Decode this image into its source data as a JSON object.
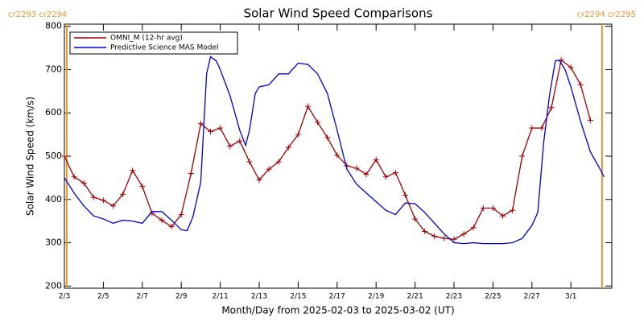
{
  "chart_data": {
    "type": "line",
    "title": "Solar Wind Speed Comparisons",
    "xlabel": "Month/Day from 2025-02-03 to 2025-03-02 (UT)",
    "ylabel": "Solar Wind Speed (km/s)",
    "xlim": [
      0,
      28.1
    ],
    "ylim": [
      195,
      805
    ],
    "xticks": [
      {
        "value": 0,
        "label": "2/3"
      },
      {
        "value": 2,
        "label": "2/5"
      },
      {
        "value": 4,
        "label": "2/7"
      },
      {
        "value": 6,
        "label": "2/9"
      },
      {
        "value": 8,
        "label": "2/11"
      },
      {
        "value": 10,
        "label": "2/13"
      },
      {
        "value": 12,
        "label": "2/15"
      },
      {
        "value": 14,
        "label": "2/17"
      },
      {
        "value": 16,
        "label": "2/19"
      },
      {
        "value": 18,
        "label": "2/21"
      },
      {
        "value": 20,
        "label": "2/23"
      },
      {
        "value": 22,
        "label": "2/25"
      },
      {
        "value": 24,
        "label": "2/27"
      },
      {
        "value": 26,
        "label": "3/1"
      }
    ],
    "yticks": [
      200,
      300,
      400,
      500,
      600,
      700,
      800
    ],
    "legend": "upper left",
    "carrington": [
      {
        "x": 0.12,
        "label": "cr2293 cr2294",
        "color": "#e8952a"
      },
      {
        "x": 27.6,
        "label": "cr2294 cr2295",
        "color": "#e8952a"
      }
    ],
    "series": [
      {
        "name": "OMNI_M (12-hr avg)",
        "color": "#a00000",
        "markers": true,
        "x": [
          0,
          0.5,
          1,
          1.5,
          2,
          2.5,
          3,
          3.5,
          4,
          4.5,
          5,
          5.5,
          6,
          6.5,
          7,
          7.5,
          8,
          8.5,
          9,
          9.5,
          10,
          10.5,
          11,
          11.5,
          12,
          12.5,
          13,
          13.5,
          14,
          14.5,
          15,
          15.5,
          16,
          16.5,
          17,
          17.5,
          18,
          18.5,
          19,
          19.5,
          20,
          20.5,
          21,
          21.5,
          22,
          22.5,
          23,
          23.5,
          24,
          24.5,
          25,
          25.5,
          26,
          26.5,
          27
        ],
        "values": [
          500,
          452,
          438,
          405,
          398,
          385,
          412,
          467,
          430,
          368,
          352,
          337,
          365,
          460,
          575,
          557,
          565,
          523,
          535,
          487,
          445,
          470,
          487,
          520,
          550,
          615,
          578,
          543,
          502,
          478,
          472,
          458,
          492,
          452,
          462,
          410,
          355,
          326,
          315,
          310,
          308,
          320,
          335,
          380,
          380,
          362,
          375,
          500,
          565,
          565,
          612,
          722,
          705,
          665,
          583
        ]
      },
      {
        "name": "Predictive Science MAS Model",
        "color": "#0000d0",
        "markers": false,
        "x": [
          0,
          0.5,
          1,
          1.5,
          2,
          2.5,
          3,
          3.5,
          4,
          4.5,
          5,
          5.5,
          6,
          6.3,
          6.6,
          7,
          7.3,
          7.5,
          7.8,
          8,
          8.5,
          9,
          9.3,
          9.5,
          9.8,
          10,
          10.5,
          11,
          11.5,
          12,
          12.5,
          13,
          13.5,
          14,
          14.5,
          15,
          15.5,
          16,
          16.5,
          17,
          17.5,
          18,
          18.5,
          19,
          19.5,
          20,
          20.5,
          21,
          21.5,
          22,
          22.5,
          23,
          23.5,
          24,
          24.3,
          24.6,
          24.9,
          25.2,
          25.4,
          25.7,
          26,
          26.5,
          27,
          27.5,
          27.7
        ],
        "values": [
          450,
          415,
          385,
          362,
          355,
          345,
          352,
          350,
          345,
          372,
          372,
          352,
          330,
          328,
          360,
          440,
          690,
          730,
          720,
          700,
          640,
          560,
          525,
          560,
          645,
          660,
          665,
          690,
          690,
          715,
          712,
          690,
          645,
          560,
          470,
          435,
          415,
          395,
          375,
          365,
          392,
          390,
          370,
          345,
          320,
          300,
          298,
          300,
          298,
          298,
          298,
          300,
          310,
          340,
          370,
          530,
          640,
          720,
          722,
          700,
          660,
          580,
          510,
          470,
          452
        ]
      }
    ]
  }
}
